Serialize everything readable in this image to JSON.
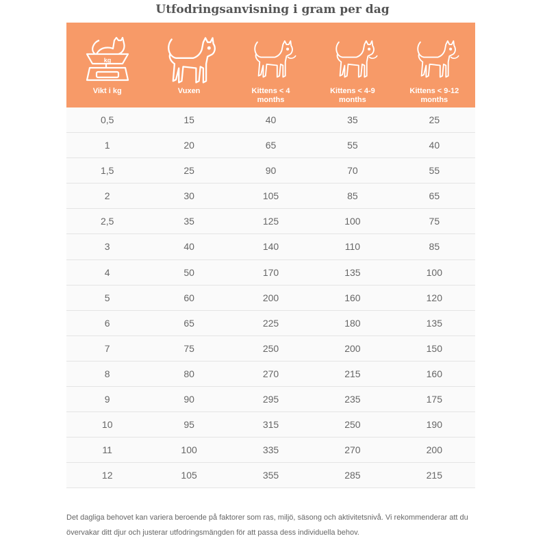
{
  "title": "Utfodringsanvisning i gram per dag",
  "header_color": "#F79A68",
  "columns": [
    {
      "label": "Vikt i kg",
      "icon": "scale-cat-icon"
    },
    {
      "label": "Vuxen",
      "icon": "adult-cat-icon"
    },
    {
      "label": "Kittens < 4 months",
      "icon": "kitten-icon"
    },
    {
      "label": "Kittens < 4-9 months",
      "icon": "kitten-icon"
    },
    {
      "label": "Kittens < 9-12 months",
      "icon": "kitten-icon"
    }
  ],
  "rows": [
    [
      "0,5",
      "15",
      "40",
      "35",
      "25"
    ],
    [
      "1",
      "20",
      "65",
      "55",
      "40"
    ],
    [
      "1,5",
      "25",
      "90",
      "70",
      "55"
    ],
    [
      "2",
      "30",
      "105",
      "85",
      "65"
    ],
    [
      "2,5",
      "35",
      "125",
      "100",
      "75"
    ],
    [
      "3",
      "40",
      "140",
      "110",
      "85"
    ],
    [
      "4",
      "50",
      "170",
      "135",
      "100"
    ],
    [
      "5",
      "60",
      "200",
      "160",
      "120"
    ],
    [
      "6",
      "65",
      "225",
      "180",
      "135"
    ],
    [
      "7",
      "75",
      "250",
      "200",
      "150"
    ],
    [
      "8",
      "80",
      "270",
      "215",
      "160"
    ],
    [
      "9",
      "90",
      "295",
      "235",
      "175"
    ],
    [
      "10",
      "95",
      "315",
      "250",
      "190"
    ],
    [
      "11",
      "100",
      "335",
      "270",
      "200"
    ],
    [
      "12",
      "105",
      "355",
      "285",
      "215"
    ]
  ],
  "note": "Det dagliga behovet kan variera beroende på faktorer som ras, miljö, säsong och aktivitetsnivå. Vi rekommenderar att du övervakar ditt djur och justerar utfodringsmängden för att passa dess individuella behov.",
  "scale_label": "kg"
}
